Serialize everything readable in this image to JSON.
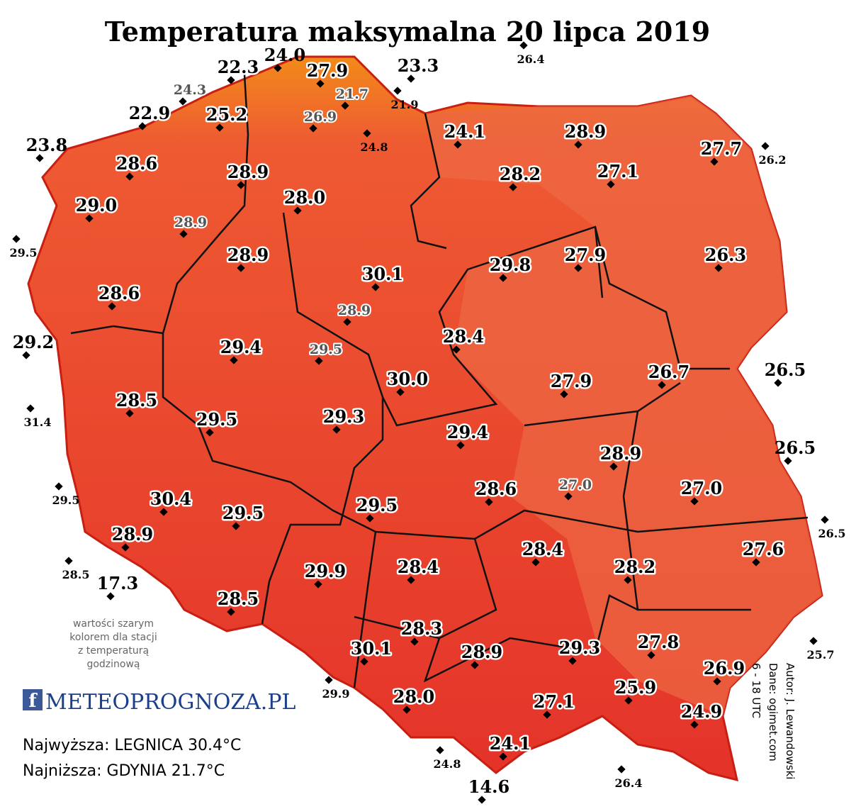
{
  "title": "Temperatura maksymalna 20 lipca 2019",
  "stations": [
    "22.3",
    "24.0",
    "27.9",
    "23.3",
    "26.4",
    "24.3",
    "21.7",
    "21.9",
    "26.9",
    "22.9",
    "25.2",
    "24.8",
    "24.1",
    "28.9",
    "27.7",
    "26.2",
    "23.8",
    "28.6",
    "28.9",
    "28.0",
    "28.2",
    "27.1",
    "29.0",
    "28.9",
    "29.5",
    "28.9",
    "30.1",
    "29.8",
    "27.9",
    "26.3",
    "28.6",
    "28.9",
    "28.4",
    "29.2",
    "29.4",
    "29.5",
    "30.0",
    "27.9",
    "26.7",
    "26.5",
    "28.5",
    "29.5",
    "29.3",
    "29.4",
    "31.4",
    "28.9",
    "26.5",
    "27.0",
    "28.6",
    "27.0",
    "29.5",
    "30.4",
    "29.5",
    "29.5",
    "26.5",
    "28.9",
    "28.4",
    "27.6",
    "28.5",
    "17.3",
    "28.2",
    "28.4",
    "29.9",
    "28.5",
    "28.3",
    "30.1",
    "28.9",
    "29.3",
    "27.8",
    "25.7",
    "26.9",
    "25.9",
    "28.0",
    "27.1",
    "29.9",
    "24.9",
    "24.1",
    "24.8",
    "14.6",
    "26.4"
  ],
  "note": [
    "wartości szarym",
    "kolorem dla stacji",
    "z temperaturą",
    "godzinową"
  ],
  "logo": "METEOPROGNOZA.PL",
  "highest": "Najwyższa: LEGNICA 30.4°C",
  "lowest": "Najniższa: GDYNIA 21.7°C",
  "credits": [
    "Autor: J. Lewandowski",
    "Dane: ogimet.com",
    "6 - 18 UTC"
  ]
}
